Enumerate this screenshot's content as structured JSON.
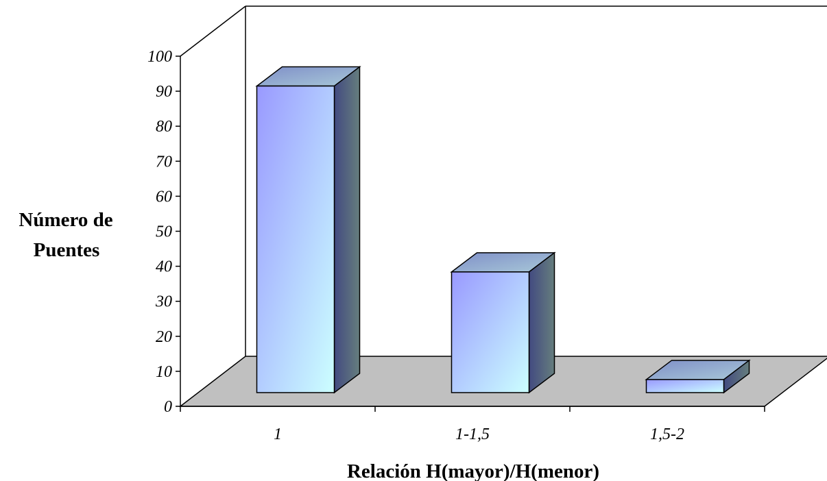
{
  "chart_data": {
    "type": "bar",
    "style": "3d-column",
    "categories": [
      "1",
      "1-1,5",
      "1,5-2"
    ],
    "values": [
      94,
      37,
      4
    ],
    "ylabel": [
      "Número de",
      "Puentes"
    ],
    "xlabel": "Relación H(mayor)/H(menor)",
    "ylim": [
      0,
      100
    ],
    "yticks": [
      "0",
      "10",
      "20",
      "30",
      "40",
      "50",
      "60",
      "70",
      "80",
      "90",
      "100"
    ],
    "grid": false,
    "legend": "none",
    "colors": {
      "bar_front_top": "#9999ff",
      "bar_front_bottom": "#ccffff",
      "bar_top_side": "#8fa8c8",
      "bar_right_side": "#4a5a80",
      "floor": "#c0c0c0",
      "axis": "#000000"
    }
  }
}
